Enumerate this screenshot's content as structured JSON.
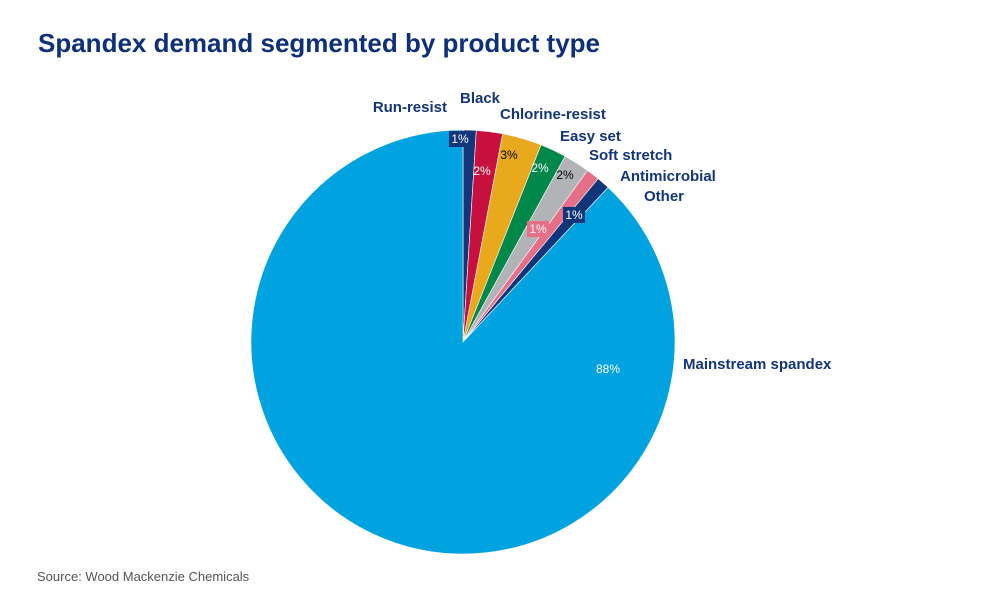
{
  "chart_data": {
    "type": "pie",
    "title": "Spandex demand segmented by product type",
    "source": "Source: Wood Mackenzie Chemicals",
    "start_angle": "12 o'clock",
    "direction": "clockwise",
    "legend": "none (labels outside slices)",
    "slices": [
      {
        "label": "Run-resist",
        "value": 1,
        "display": "1%",
        "color": "#13357a"
      },
      {
        "label": "Black",
        "value": 2,
        "display": "2%",
        "color": "#c8103e"
      },
      {
        "label": "Chlorine-resist",
        "value": 3,
        "display": "3%",
        "color": "#e9a91d"
      },
      {
        "label": "Easy set",
        "value": 2,
        "display": "2%",
        "color": "#00874a"
      },
      {
        "label": "Soft stretch",
        "value": 2,
        "display": "2%",
        "color": "#b1b3b6"
      },
      {
        "label": "Antimicrobial",
        "value": 1,
        "display": "1%",
        "color": "#e46f87"
      },
      {
        "label": "Other",
        "value": 1,
        "display": "1%",
        "color": "#13357a"
      },
      {
        "label": "Mainstream spandex",
        "value": 88,
        "display": "88%",
        "color": "#00a3e0"
      }
    ]
  }
}
